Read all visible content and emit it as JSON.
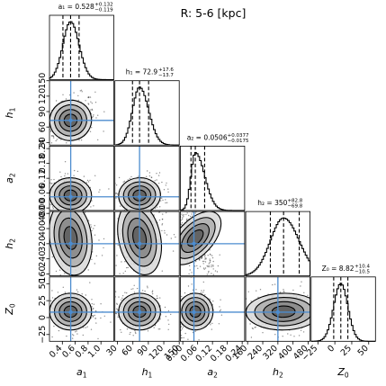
{
  "chart_data": {
    "type": "corner",
    "title": "R: 5-6 [kpc]",
    "parameters": [
      {
        "key": "a1",
        "symbol": "a",
        "subscript": "1",
        "range": [
          0.2,
          1.2
        ],
        "ticks": [
          0.4,
          0.6,
          0.8,
          1.0
        ],
        "tick_labels": [
          "0.4",
          "0.6",
          "0.8",
          "1.0"
        ],
        "median": 0.528,
        "plus": 0.132,
        "minus": 0.119,
        "title_text": "a₁ = 0.528",
        "title_sup": "+0.132",
        "title_sub": "−0.119",
        "truth": 0.53,
        "sigma": 0.11
      },
      {
        "key": "h1",
        "symbol": "h",
        "subscript": "1",
        "range": [
          25,
          150
        ],
        "ticks": [
          30,
          60,
          90,
          120,
          150
        ],
        "tick_labels": [
          "30",
          "60",
          "90",
          "120",
          "150"
        ],
        "median": 72.9,
        "plus": 17.6,
        "minus": 13.7,
        "title_text": "h₁ = 72.9",
        "title_sup": "+17.6",
        "title_sub": "−13.7",
        "truth": 72.9,
        "sigma": 14
      },
      {
        "key": "a2",
        "symbol": "a",
        "subscript": "2",
        "range": [
          -0.01,
          0.25
        ],
        "ticks": [
          0.0,
          0.06,
          0.12,
          0.18,
          0.24
        ],
        "tick_labels": [
          "0.00",
          "0.06",
          "0.12",
          "0.18",
          "0.24"
        ],
        "median": 0.0506,
        "plus": 0.0377,
        "minus": 0.0175,
        "title_text": "a₂ = 0.0506",
        "title_sup": "+0.0377",
        "title_sub": "−0.0175",
        "truth": 0.045,
        "sigma": 0.02
      },
      {
        "key": "h2",
        "symbol": "h",
        "subscript": "2",
        "range": [
          150,
          490
        ],
        "ticks": [
          160,
          240,
          320,
          400,
          480
        ],
        "tick_labels": [
          "160",
          "240",
          "320",
          "400",
          "480"
        ],
        "median": 350,
        "plus": 82.8,
        "minus": 69.8,
        "title_text": "h₂ = 350",
        "title_sup": "+82.8",
        "title_sub": "−69.8",
        "truth": 320,
        "sigma": 70
      },
      {
        "key": "Z0",
        "symbol": "Z",
        "subscript": "0",
        "range": [
          -35,
          60
        ],
        "ticks": [
          -25,
          0,
          25,
          50
        ],
        "tick_labels": [
          "−25",
          "0",
          "25",
          "50"
        ],
        "median": 8.82,
        "plus": 10.4,
        "minus": 10.5,
        "title_text": "Z₀ = 8.82",
        "title_sup": "+10.4",
        "title_sub": "−10.5",
        "truth": 8.0,
        "sigma": 10.5
      }
    ],
    "truth_color": "#4c8ccf",
    "contour_color": "#000000",
    "hist_color": "#000000",
    "grid": false,
    "legend": "none"
  }
}
